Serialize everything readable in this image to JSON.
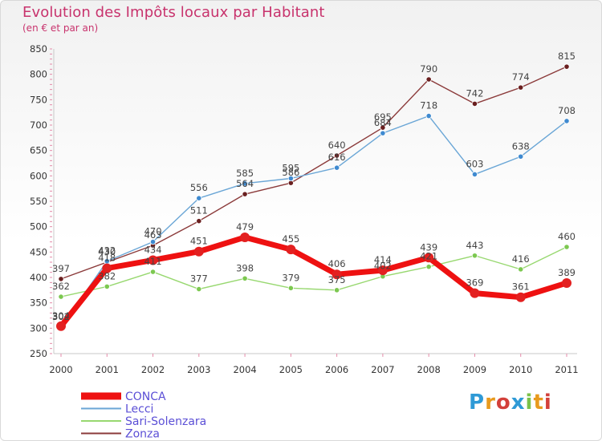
{
  "title": "Evolution des Impôts locaux par Habitant",
  "subtitle": "(en € et par an)",
  "brand": "Proxiti",
  "brand_colors": [
    "#2f9ad6",
    "#e89a1d",
    "#d3403a",
    "#2f9ad6",
    "#7bc24a",
    "#e89a1d",
    "#d3403a"
  ],
  "chart_data": {
    "type": "line",
    "x": [
      "2000",
      "2001",
      "2002",
      "2003",
      "2004",
      "2005",
      "2006",
      "2007",
      "2008",
      "2009",
      "2010",
      "2011"
    ],
    "ylim": [
      250,
      850
    ],
    "yticks": [
      250,
      300,
      350,
      400,
      450,
      500,
      550,
      600,
      650,
      700,
      750,
      800,
      850
    ],
    "grid": false,
    "legend_position": "bottom",
    "series": [
      {
        "name": "CONCA",
        "color": "#ee1111",
        "width": 7,
        "marker": "#e32020",
        "values": [
          304,
          418,
          434,
          451,
          479,
          455,
          406,
          414,
          439,
          369,
          361,
          389
        ],
        "labels": [
          "304",
          "418",
          "434",
          "451",
          "479",
          "455",
          "406",
          "414",
          "439",
          "369",
          "361",
          "389"
        ]
      },
      {
        "name": "Lecci",
        "color": "#6aa6d6",
        "width": 1.4,
        "marker": "#3f8ad0",
        "values": [
          302,
          432,
          470,
          556,
          585,
          595,
          616,
          684,
          718,
          603,
          638,
          708
        ],
        "labels": [
          "302",
          "432",
          "470",
          "556",
          "585",
          "595",
          "616",
          "684",
          "718",
          "603",
          "638",
          "708"
        ]
      },
      {
        "name": "Sari-Solenzara",
        "color": "#98d870",
        "width": 1.4,
        "marker": "#7cc850",
        "values": [
          362,
          382,
          411,
          377,
          398,
          379,
          375,
          402,
          421,
          443,
          416,
          460
        ],
        "labels": [
          "362",
          "382",
          "411",
          "377",
          "398",
          "379",
          "375",
          "402",
          "421",
          "443",
          "416",
          "460"
        ]
      },
      {
        "name": "Zonza",
        "color": "#8b3a3a",
        "width": 1.4,
        "marker": "#6a1f1f",
        "values": [
          397,
          430,
          463,
          511,
          564,
          586,
          640,
          695,
          790,
          742,
          774,
          815
        ],
        "labels": [
          "397",
          "430",
          "463",
          "511",
          "564",
          "586",
          "640",
          "695",
          "790",
          "742",
          "774",
          "815"
        ]
      }
    ]
  }
}
